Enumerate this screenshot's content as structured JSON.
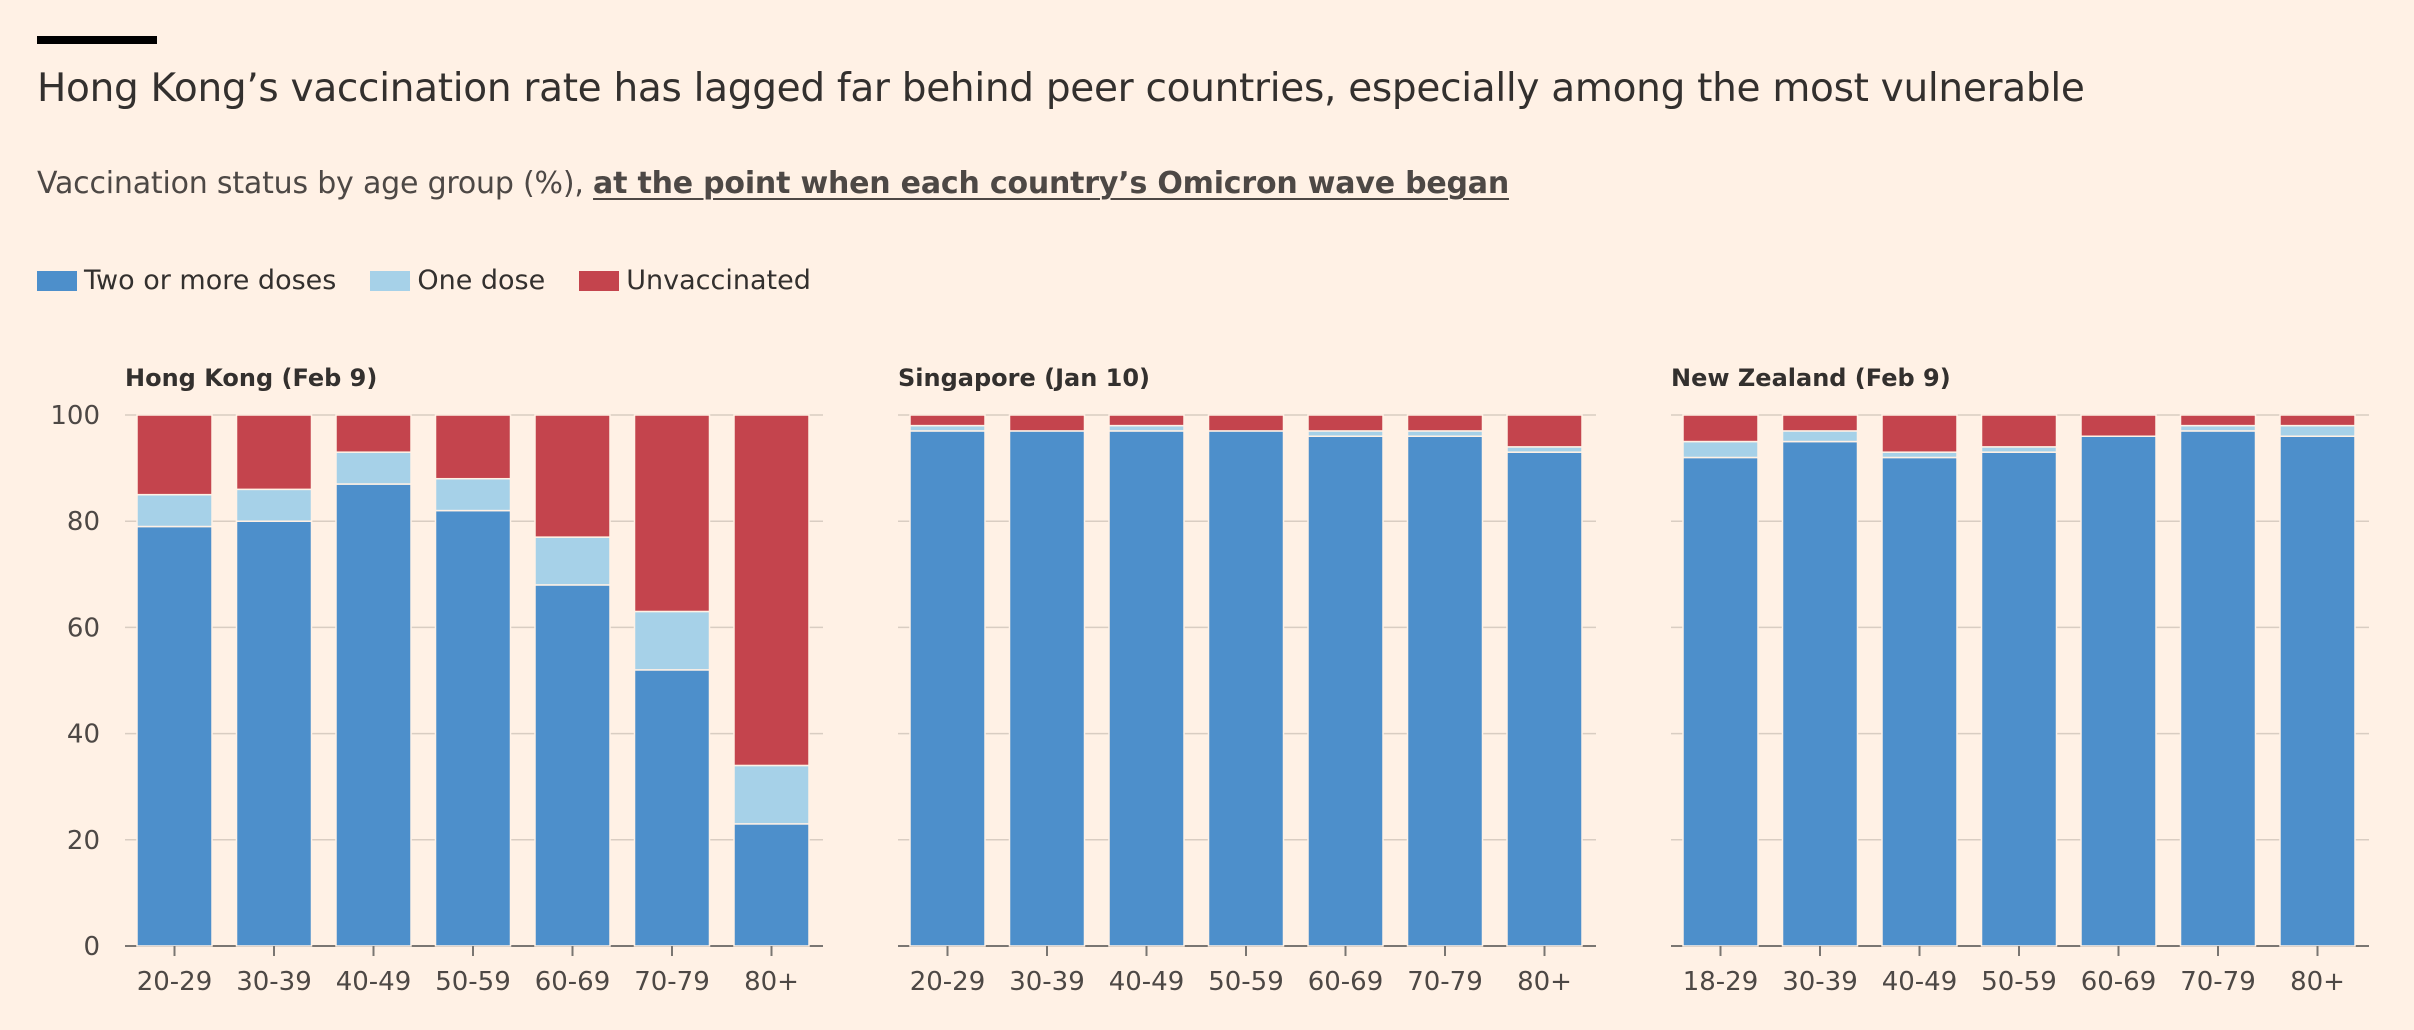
{
  "title": "Hong Kong’s vaccination rate has lagged far behind peer countries, especially among the most vulnerable",
  "subtitle": {
    "text": "Vaccination status by age group (%), ",
    "link_text": "at the point when each country’s Omicron wave began"
  },
  "legend": [
    {
      "label": "Two or more doses",
      "color": "#4d8fcb"
    },
    {
      "label": "One dose",
      "color": "#a6d1e8"
    },
    {
      "label": "Unvaccinated",
      "color": "#c4444d"
    }
  ],
  "chart_data": [
    {
      "type": "bar",
      "stacked": true,
      "title": "Hong Kong (Feb 9)",
      "categories": [
        "20-29",
        "30-39",
        "40-49",
        "50-59",
        "60-69",
        "70-79",
        "80+"
      ],
      "series": [
        {
          "name": "Two or more doses",
          "values": [
            79,
            80,
            87,
            82,
            68,
            52,
            23
          ]
        },
        {
          "name": "One dose",
          "values": [
            6,
            6,
            6,
            6,
            9,
            11,
            11
          ]
        },
        {
          "name": "Unvaccinated",
          "values": [
            15,
            14,
            7,
            12,
            23,
            37,
            66
          ]
        }
      ],
      "ylim": [
        0,
        100
      ],
      "yticks": [
        0,
        20,
        40,
        60,
        80,
        100
      ],
      "grid": true
    },
    {
      "type": "bar",
      "stacked": true,
      "title": "Singapore (Jan 10)",
      "categories": [
        "20-29",
        "30-39",
        "40-49",
        "50-59",
        "60-69",
        "70-79",
        "80+"
      ],
      "series": [
        {
          "name": "Two or more doses",
          "values": [
            97,
            97,
            97,
            97,
            96,
            96,
            93
          ]
        },
        {
          "name": "One dose",
          "values": [
            1,
            0,
            1,
            0,
            1,
            1,
            1
          ]
        },
        {
          "name": "Unvaccinated",
          "values": [
            2,
            3,
            2,
            3,
            3,
            3,
            6
          ]
        }
      ],
      "ylim": [
        0,
        100
      ],
      "yticks": [
        0,
        20,
        40,
        60,
        80,
        100
      ],
      "grid": true
    },
    {
      "type": "bar",
      "stacked": true,
      "title": "New Zealand (Feb 9)",
      "categories": [
        "18-29",
        "30-39",
        "40-49",
        "50-59",
        "60-69",
        "70-79",
        "80+"
      ],
      "series": [
        {
          "name": "Two or more doses",
          "values": [
            92,
            95,
            92,
            93,
            96,
            97,
            96
          ]
        },
        {
          "name": "One dose",
          "values": [
            3,
            2,
            1,
            1,
            0,
            1,
            2
          ]
        },
        {
          "name": "Unvaccinated",
          "values": [
            5,
            3,
            7,
            6,
            4,
            2,
            2
          ]
        }
      ],
      "ylim": [
        0,
        100
      ],
      "yticks": [
        0,
        20,
        40,
        60,
        80,
        100
      ],
      "grid": true
    }
  ]
}
